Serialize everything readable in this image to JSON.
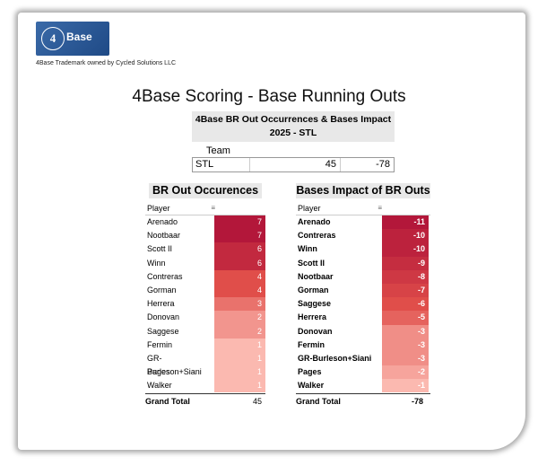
{
  "logo": {
    "mark": "4",
    "word": "Base"
  },
  "trademark": "4Base Trademark owned by Cycled Solutions LLC",
  "page_title": "4Base Scoring - Base Running Outs",
  "summary": {
    "header_line1": "4Base BR Out Occurrences & Bases Impact",
    "header_line2": "2025 - STL",
    "team_label": "Team",
    "team": "STL",
    "occurrences": "45",
    "impact": "-78"
  },
  "colors": {
    "dark": "#b3173a",
    "mid": "#e04e4a",
    "light": "#fbb9b0"
  },
  "chart_data": [
    {
      "type": "table",
      "title": "BR Out Occurences",
      "column_header": "Player",
      "categories": [
        "Arenado",
        "Nootbaar",
        "Scott II",
        "Winn",
        "Contreras",
        "Gorman",
        "Herrera",
        "Donovan",
        "Saggese",
        "Fermin",
        "GR-Burleson+Siani",
        "Pages",
        "Walker"
      ],
      "values": [
        7,
        7,
        6,
        6,
        4,
        4,
        3,
        2,
        2,
        1,
        1,
        1,
        1
      ],
      "total_label": "Grand Total",
      "total": 45
    },
    {
      "type": "table",
      "title": "Bases Impact of BR Outs",
      "column_header": "Player",
      "categories": [
        "Arenado",
        "Contreras",
        "Winn",
        "Scott II",
        "Nootbaar",
        "Gorman",
        "Saggese",
        "Herrera",
        "Donovan",
        "Fermin",
        "GR-Burleson+Siani",
        "Pages",
        "Walker"
      ],
      "values": [
        -11,
        -10,
        -10,
        -9,
        -8,
        -7,
        -6,
        -5,
        -3,
        -3,
        -3,
        -2,
        -1
      ],
      "total_label": "Grand Total",
      "total": -78
    }
  ]
}
